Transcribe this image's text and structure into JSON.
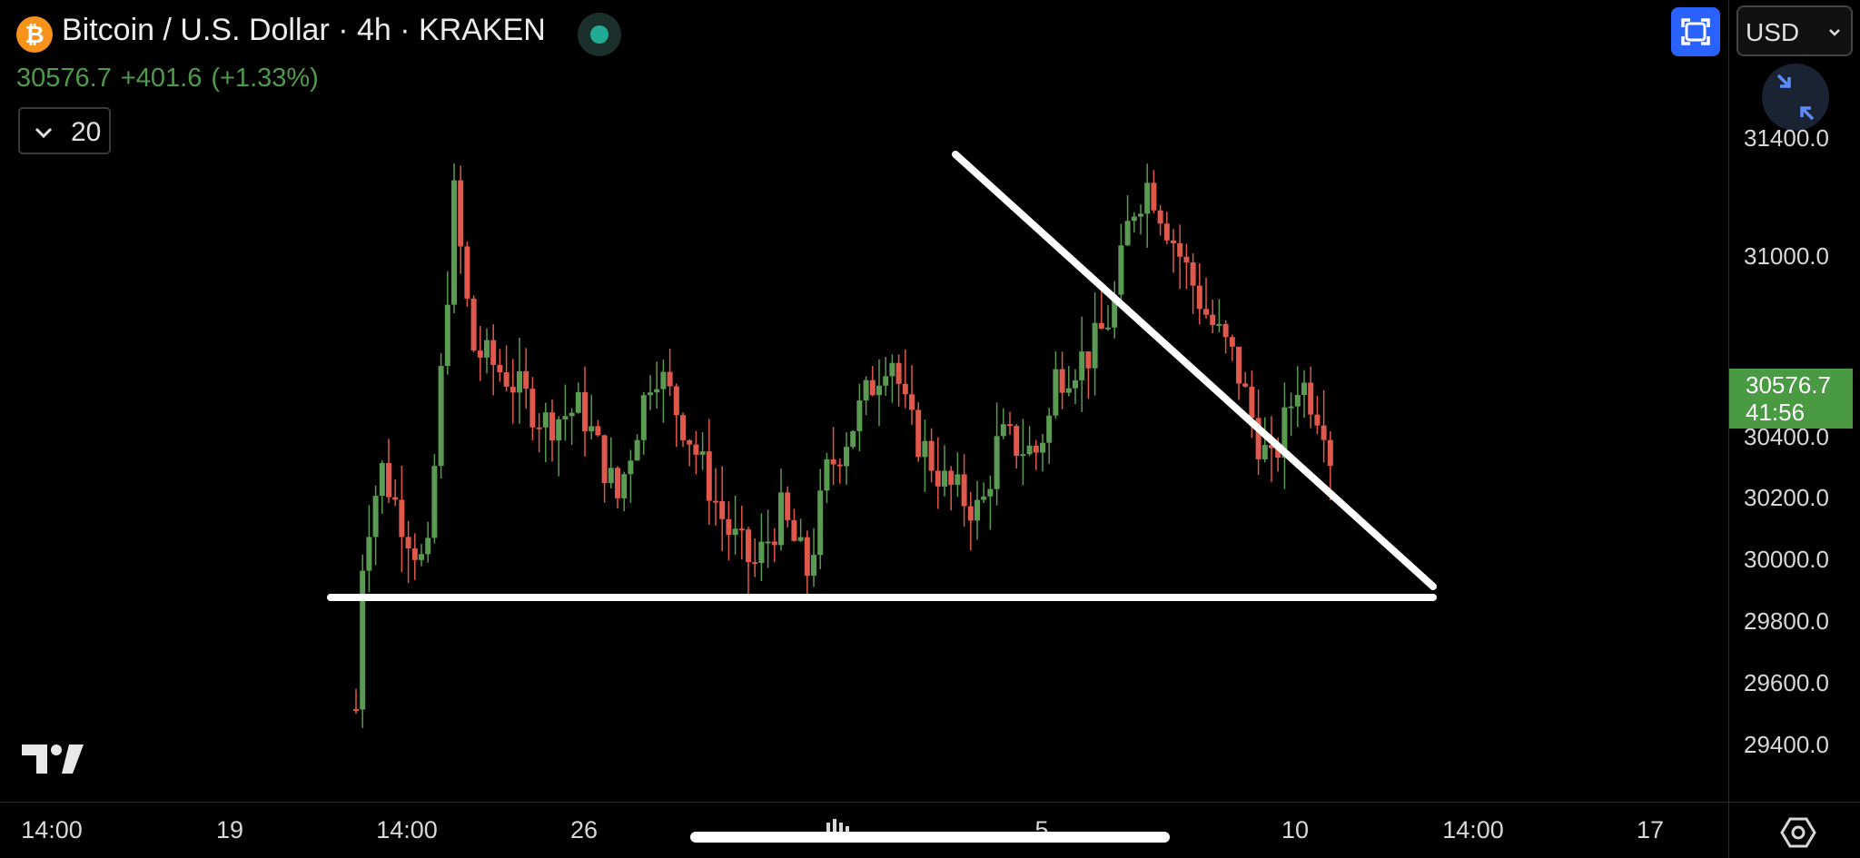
{
  "header": {
    "coin_symbol": "₿",
    "title": "Bitcoin / U.S. Dollar · 4h · KRAKEN",
    "last_price": "30576.7",
    "change": "+401.6",
    "change_pct": "(+1.33%)",
    "indicator_count": "20",
    "currency": "USD"
  },
  "price_tag": {
    "price": "30576.7",
    "countdown": "41:56"
  },
  "chart_data": {
    "type": "candlestick",
    "y_ticks": [
      "31400.0",
      "31000.0",
      "30400.0",
      "30200.0",
      "30000.0",
      "29800.0",
      "29600.0",
      "29400.0"
    ],
    "x_ticks": [
      "14:00",
      "19",
      "14:00",
      "26",
      "5",
      "10",
      "14:00",
      "17"
    ],
    "last": 30576.7,
    "support_level": 29860,
    "colors": {
      "up": "#5a9a52",
      "down": "#e0574c",
      "line": "#ffffff"
    }
  },
  "icons": {
    "expand": "expand-icon",
    "collapse": "collapse-arrows-icon",
    "settings": "settings-hex-icon",
    "logo": "tradingview-logo"
  }
}
